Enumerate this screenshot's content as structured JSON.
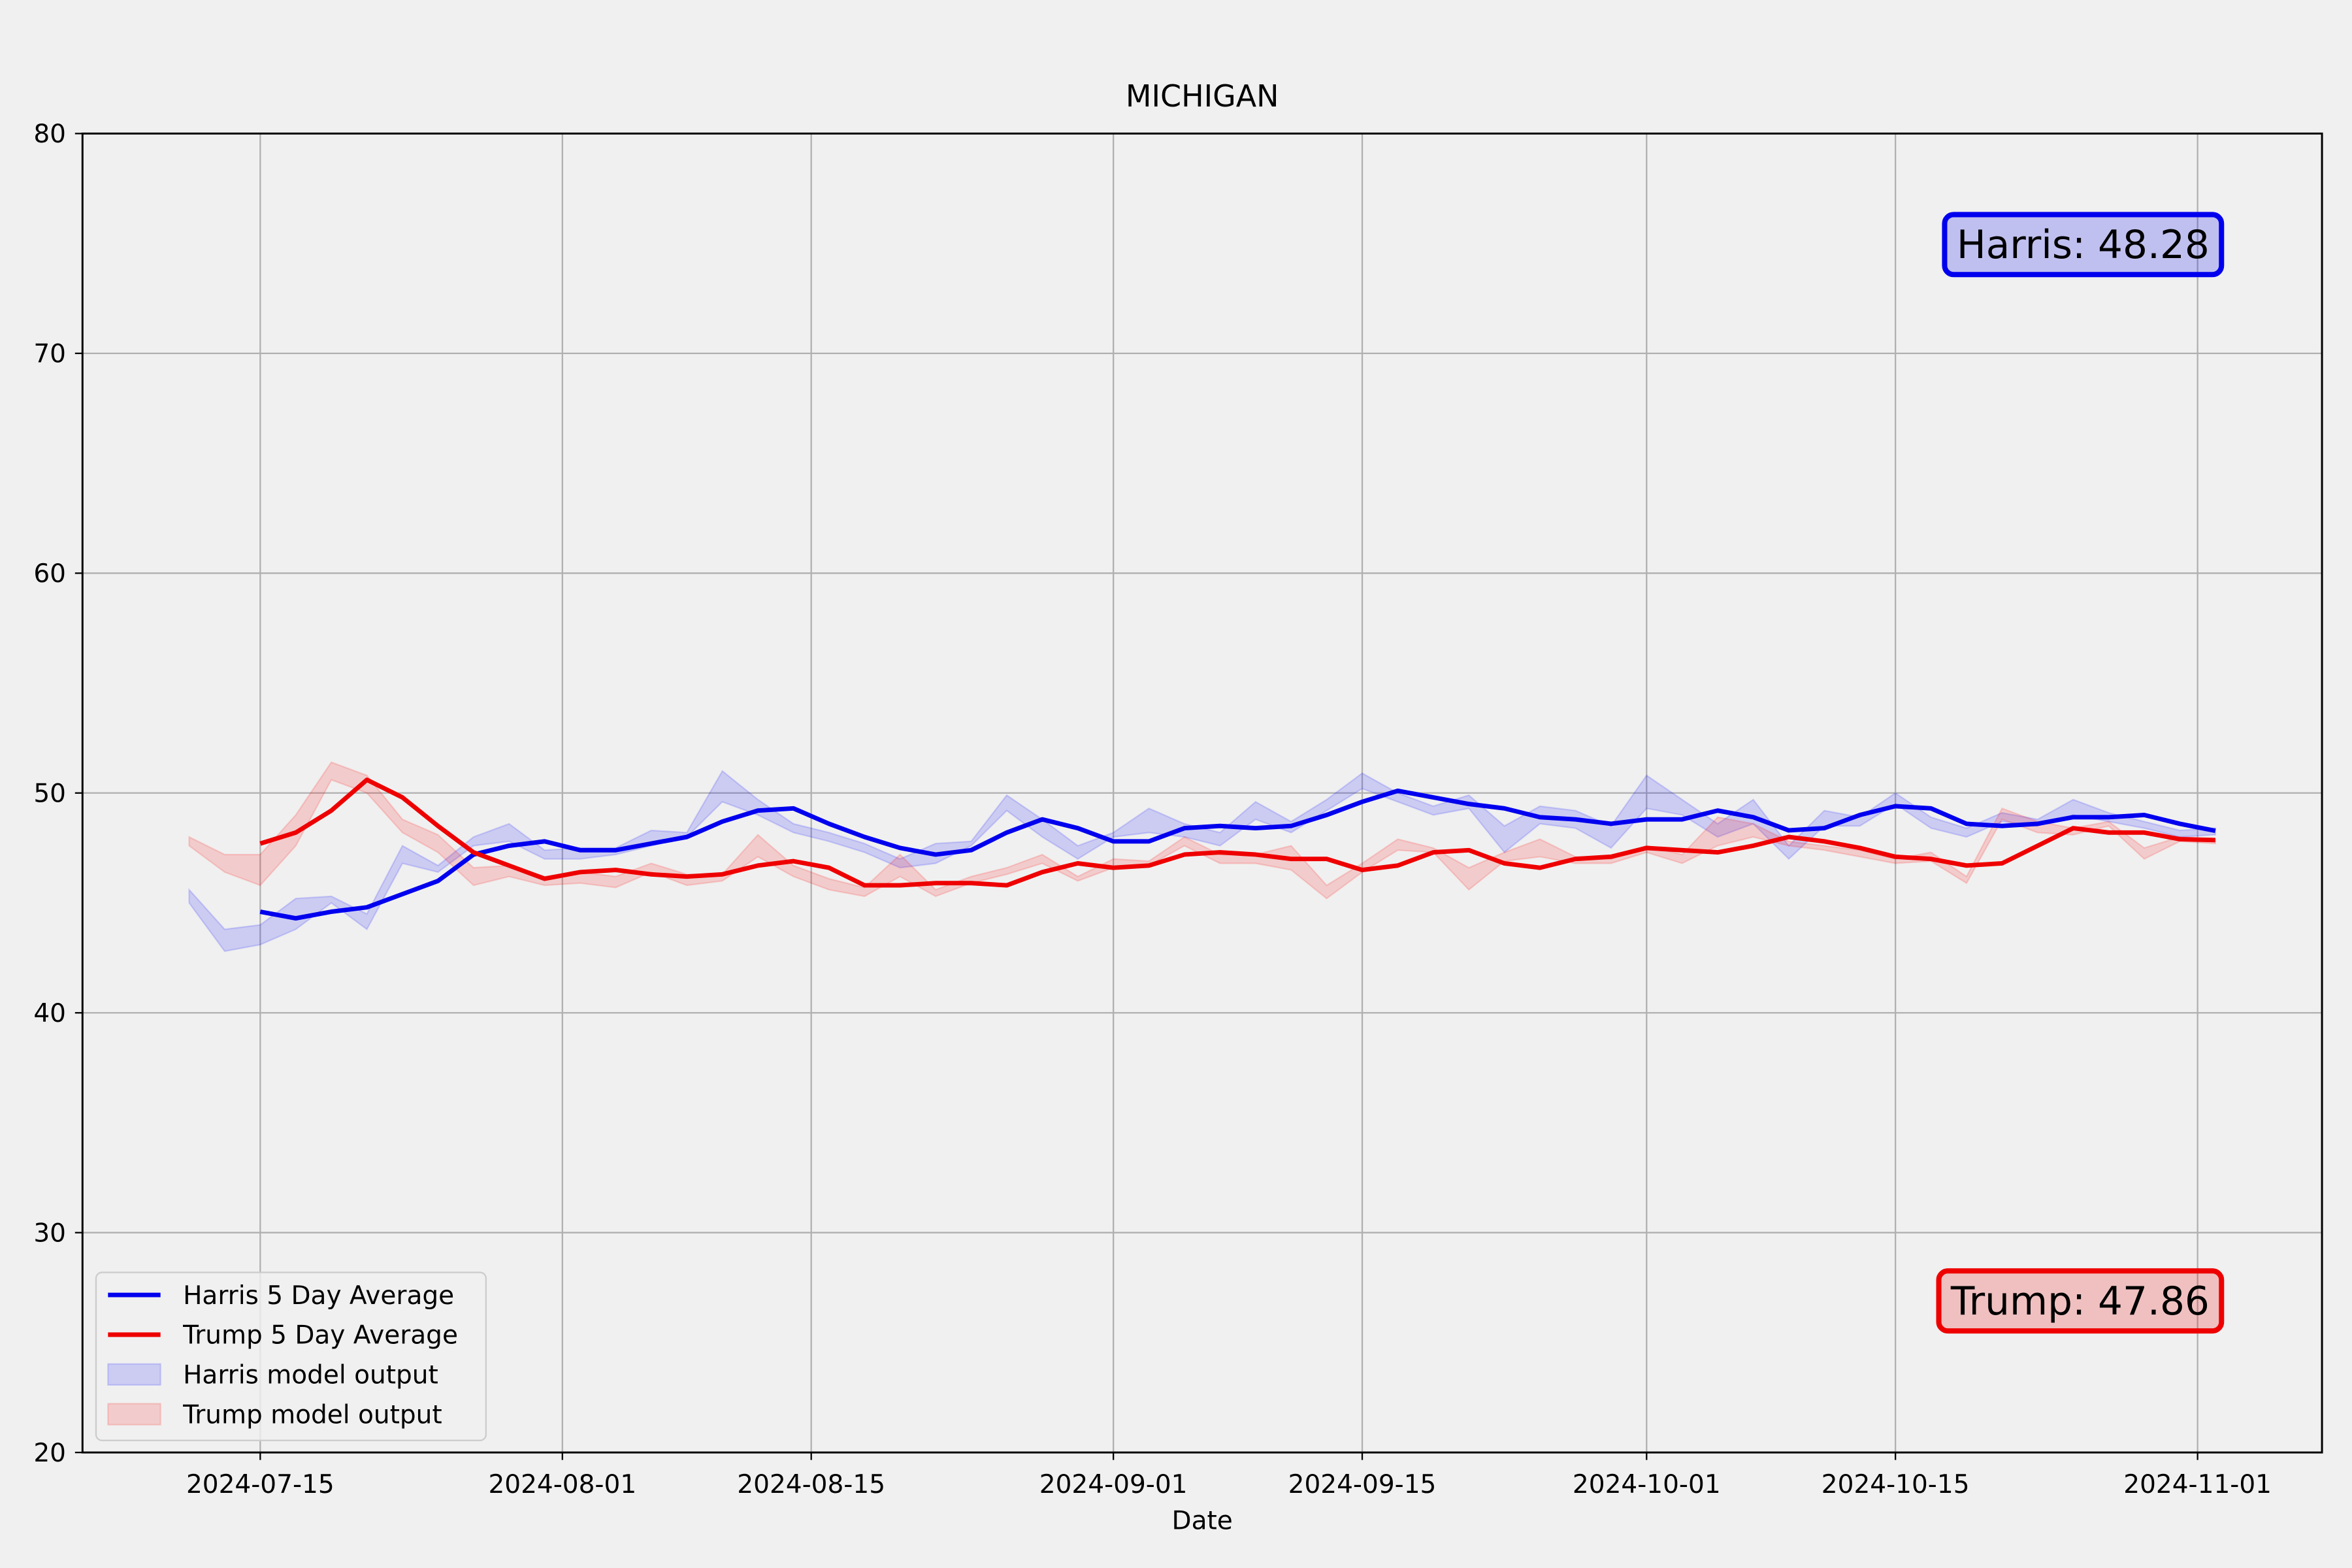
{
  "chart_data": {
    "type": "line",
    "title": "MICHIGAN",
    "x_label": "Date",
    "x": [
      "2024-07-11",
      "2024-07-13",
      "2024-07-15",
      "2024-07-17",
      "2024-07-19",
      "2024-07-21",
      "2024-07-23",
      "2024-07-25",
      "2024-07-27",
      "2024-07-29",
      "2024-07-31",
      "2024-08-02",
      "2024-08-04",
      "2024-08-06",
      "2024-08-08",
      "2024-08-10",
      "2024-08-12",
      "2024-08-14",
      "2024-08-16",
      "2024-08-18",
      "2024-08-20",
      "2024-08-22",
      "2024-08-24",
      "2024-08-26",
      "2024-08-28",
      "2024-08-30",
      "2024-09-01",
      "2024-09-03",
      "2024-09-05",
      "2024-09-07",
      "2024-09-09",
      "2024-09-11",
      "2024-09-13",
      "2024-09-15",
      "2024-09-17",
      "2024-09-19",
      "2024-09-21",
      "2024-09-23",
      "2024-09-25",
      "2024-09-27",
      "2024-09-29",
      "2024-10-01",
      "2024-10-03",
      "2024-10-05",
      "2024-10-07",
      "2024-10-09",
      "2024-10-11",
      "2024-10-13",
      "2024-10-15",
      "2024-10-17",
      "2024-10-19",
      "2024-10-21",
      "2024-10-23",
      "2024-10-25",
      "2024-10-27",
      "2024-10-29",
      "2024-10-31",
      "2024-11-02"
    ],
    "xlim": [
      "2024-07-05",
      "2024-11-08"
    ],
    "xticks": [
      "2024-07-15",
      "2024-08-01",
      "2024-08-15",
      "2024-09-01",
      "2024-09-15",
      "2024-10-01",
      "2024-10-15",
      "2024-11-01"
    ],
    "ylim": [
      20,
      80
    ],
    "yticks": [
      20,
      30,
      40,
      50,
      60,
      70,
      80
    ],
    "grid": true,
    "legend": "lower left",
    "series": [
      {
        "name": "Harris 5 Day Average",
        "type": "line",
        "color": "#0000ee",
        "values": [
          null,
          null,
          44.6,
          44.3,
          44.6,
          44.8,
          45.4,
          46.0,
          47.2,
          47.6,
          47.8,
          47.4,
          47.4,
          47.7,
          48.0,
          48.7,
          49.2,
          49.3,
          48.6,
          48.0,
          47.5,
          47.2,
          47.4,
          48.2,
          48.8,
          48.4,
          47.8,
          47.8,
          48.4,
          48.5,
          48.4,
          48.5,
          49.0,
          49.6,
          50.1,
          49.8,
          49.5,
          49.3,
          48.9,
          48.8,
          48.6,
          48.8,
          48.8,
          49.2,
          48.9,
          48.3,
          48.4,
          49.0,
          49.4,
          49.3,
          48.6,
          48.5,
          48.6,
          48.9,
          48.9,
          49.0,
          48.6,
          48.28
        ]
      },
      {
        "name": "Trump 5 Day Average",
        "type": "line",
        "color": "#ee0000",
        "values": [
          null,
          null,
          47.7,
          48.2,
          49.2,
          50.6,
          49.8,
          48.5,
          47.3,
          46.7,
          46.1,
          46.4,
          46.5,
          46.3,
          46.2,
          46.3,
          46.7,
          46.9,
          46.6,
          45.8,
          45.8,
          45.9,
          45.9,
          45.8,
          46.4,
          46.8,
          46.6,
          46.7,
          47.2,
          47.3,
          47.2,
          47.0,
          47.0,
          46.5,
          46.7,
          47.3,
          47.4,
          46.8,
          46.6,
          47.0,
          47.1,
          47.5,
          47.4,
          47.3,
          47.6,
          48.0,
          47.8,
          47.5,
          47.1,
          47.0,
          46.7,
          46.8,
          47.6,
          48.4,
          48.2,
          48.2,
          47.9,
          47.86
        ]
      },
      {
        "name": "Harris model output",
        "type": "band",
        "color": "#0000ff",
        "alpha": 0.15,
        "lower": [
          45.0,
          42.8,
          43.1,
          43.8,
          45.0,
          43.8,
          46.8,
          46.4,
          47.6,
          47.8,
          47.0,
          47.0,
          47.2,
          47.6,
          48.0,
          49.6,
          49.0,
          48.2,
          47.8,
          47.3,
          46.6,
          46.8,
          47.6,
          49.2,
          48.0,
          47.0,
          48.0,
          48.2,
          48.0,
          47.6,
          48.8,
          48.2,
          49.2,
          50.2,
          49.6,
          49.0,
          49.3,
          47.3,
          48.6,
          48.4,
          47.5,
          49.3,
          49.0,
          48.0,
          48.6,
          47.0,
          48.5,
          48.5,
          49.5,
          48.4,
          48.0,
          48.7,
          48.5,
          49.0,
          48.7,
          48.4,
          48.0,
          48.1
        ],
        "upper": [
          45.6,
          43.8,
          44.0,
          45.2,
          45.3,
          44.5,
          47.6,
          46.7,
          48.0,
          48.6,
          47.4,
          47.5,
          47.5,
          48.3,
          48.2,
          51.0,
          49.7,
          48.6,
          48.2,
          47.7,
          47.0,
          47.7,
          47.8,
          49.9,
          48.8,
          47.6,
          48.2,
          49.3,
          48.6,
          48.2,
          49.6,
          48.7,
          49.7,
          50.9,
          50.0,
          49.4,
          49.9,
          48.5,
          49.4,
          49.2,
          48.5,
          50.8,
          49.7,
          48.6,
          49.7,
          47.6,
          49.2,
          48.9,
          50.0,
          48.9,
          48.4,
          49.1,
          48.8,
          49.7,
          49.1,
          48.7,
          48.3,
          48.4
        ]
      },
      {
        "name": "Trump model output",
        "type": "band",
        "color": "#ff0000",
        "alpha": 0.15,
        "lower": [
          47.6,
          46.4,
          45.8,
          47.6,
          50.6,
          50.0,
          48.2,
          47.3,
          45.8,
          46.2,
          45.8,
          45.9,
          45.7,
          46.4,
          45.8,
          46.0,
          47.1,
          46.2,
          45.6,
          45.3,
          46.2,
          45.3,
          45.9,
          46.3,
          46.8,
          46.0,
          46.6,
          46.7,
          47.6,
          46.8,
          46.8,
          46.5,
          45.2,
          46.4,
          47.4,
          47.3,
          45.6,
          46.9,
          47.1,
          46.8,
          46.8,
          47.3,
          46.8,
          47.6,
          48.0,
          47.6,
          47.4,
          47.1,
          46.8,
          46.9,
          45.9,
          48.8,
          48.2,
          48.1,
          48.5,
          47.0,
          47.8,
          47.7
        ],
        "upper": [
          48.0,
          47.2,
          47.2,
          49.0,
          51.4,
          50.8,
          48.8,
          48.1,
          46.6,
          46.7,
          46.2,
          46.4,
          46.2,
          46.8,
          46.3,
          46.3,
          48.1,
          46.7,
          46.1,
          45.7,
          47.2,
          45.6,
          46.2,
          46.6,
          47.2,
          46.2,
          47.0,
          46.9,
          48.0,
          47.2,
          47.2,
          47.6,
          45.8,
          46.8,
          47.9,
          47.5,
          46.6,
          47.3,
          47.9,
          47.1,
          47.0,
          47.6,
          47.2,
          48.9,
          48.6,
          47.8,
          47.6,
          47.4,
          47.0,
          47.3,
          46.2,
          49.3,
          48.7,
          48.4,
          48.7,
          47.5,
          48.0,
          47.9
        ]
      }
    ],
    "annotations": [
      {
        "text": "Harris: 48.28",
        "color": "#0000ee",
        "corner": "upper right"
      },
      {
        "text": "Trump: 47.86",
        "color": "#ee0000",
        "corner": "lower right"
      }
    ]
  }
}
